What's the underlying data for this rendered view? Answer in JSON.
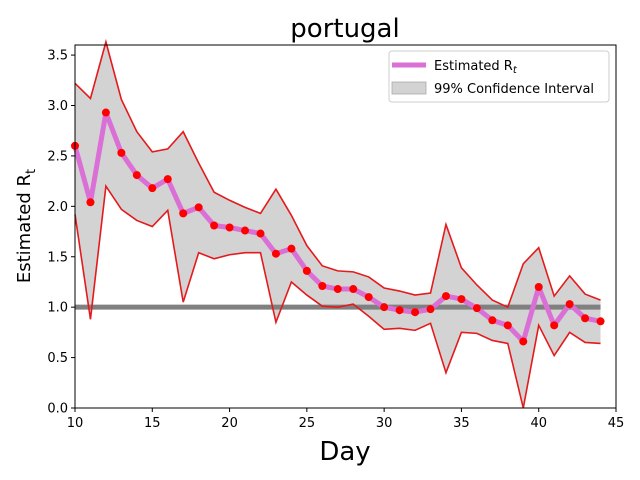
{
  "chart_data": {
    "type": "line",
    "title": "portugal",
    "xlabel": "Day",
    "ylabel_main": "Estimated R",
    "ylabel_sub": "t",
    "xlim": [
      10,
      45
    ],
    "ylim": [
      0.0,
      3.6
    ],
    "xticks": [
      10,
      15,
      20,
      25,
      30,
      35,
      40,
      45
    ],
    "yticks": [
      0.0,
      0.5,
      1.0,
      1.5,
      2.0,
      2.5,
      3.0,
      3.5
    ],
    "xtick_labels": [
      "10",
      "15",
      "20",
      "25",
      "30",
      "35",
      "40",
      "45"
    ],
    "ytick_labels": [
      "0.0",
      "0.5",
      "1.0",
      "1.5",
      "2.0",
      "2.5",
      "3.0",
      "3.5"
    ],
    "reference_line": {
      "y": 1.0,
      "x_start": 10,
      "x_end": 44,
      "color": "#808080"
    },
    "x": [
      10,
      11,
      12,
      13,
      14,
      15,
      16,
      17,
      18,
      19,
      20,
      21,
      22,
      23,
      24,
      25,
      26,
      27,
      28,
      29,
      30,
      31,
      32,
      33,
      34,
      35,
      36,
      37,
      38,
      39,
      40,
      41,
      42,
      43,
      44
    ],
    "series": [
      {
        "name": "Estimated R",
        "name_sub": "t",
        "color": "#da70d6",
        "marker_color": "#ff0000",
        "values": [
          2.6,
          2.04,
          2.93,
          2.53,
          2.31,
          2.18,
          2.27,
          1.93,
          1.99,
          1.81,
          1.79,
          1.76,
          1.73,
          1.53,
          1.58,
          1.36,
          1.21,
          1.18,
          1.18,
          1.1,
          1.0,
          0.97,
          0.95,
          0.98,
          1.11,
          1.08,
          0.99,
          0.87,
          0.82,
          0.66,
          1.2,
          0.82,
          1.03,
          0.89,
          0.86
        ]
      },
      {
        "name": "99% Confidence Interval",
        "color": "#d3d3d3",
        "edge_color": "#e41a1c",
        "upper": [
          3.22,
          3.07,
          3.63,
          3.06,
          2.74,
          2.54,
          2.57,
          2.74,
          2.43,
          2.14,
          2.06,
          1.99,
          1.93,
          2.17,
          1.91,
          1.61,
          1.41,
          1.36,
          1.35,
          1.3,
          1.19,
          1.16,
          1.12,
          1.14,
          1.82,
          1.39,
          1.22,
          1.07,
          1.0,
          1.43,
          1.59,
          1.11,
          1.31,
          1.13,
          1.07
        ],
        "lower": [
          1.92,
          0.88,
          2.2,
          1.97,
          1.86,
          1.8,
          1.96,
          1.05,
          1.54,
          1.48,
          1.52,
          1.54,
          1.54,
          0.85,
          1.25,
          1.12,
          1.01,
          1.0,
          1.03,
          0.91,
          0.78,
          0.79,
          0.77,
          0.84,
          0.35,
          0.75,
          0.74,
          0.67,
          0.64,
          0.0,
          0.82,
          0.52,
          0.75,
          0.65,
          0.64
        ]
      }
    ],
    "legend": {
      "placement": "top-right",
      "entries": [
        {
          "label": "Estimated R",
          "sub": "t",
          "kind": "line",
          "color": "#da70d6"
        },
        {
          "label": "99% Confidence Interval",
          "kind": "patch",
          "color": "#d3d3d3"
        }
      ]
    }
  }
}
